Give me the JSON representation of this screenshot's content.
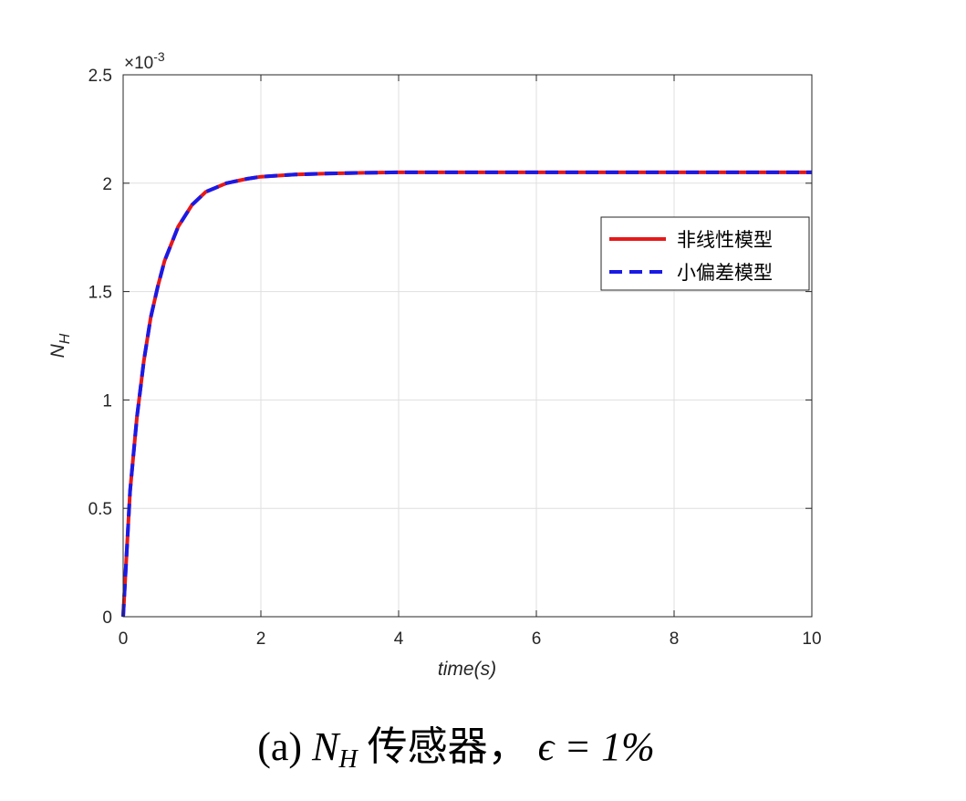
{
  "chart_data": {
    "type": "line",
    "x_axis": {
      "label": "time(s)",
      "range": [
        0,
        10
      ],
      "ticks": [
        "0",
        "2",
        "4",
        "6",
        "8",
        "10"
      ]
    },
    "y_axis": {
      "label_main": "N",
      "label_sub": "H",
      "range": [
        0,
        0.0025
      ],
      "ticks": [
        "0",
        "0.5",
        "1",
        "1.5",
        "2",
        "2.5"
      ],
      "exponent_label": "×10",
      "exponent_power": "-3"
    },
    "grid": true,
    "legend_position": "right, upper-middle",
    "series": [
      {
        "name": "非线性模型",
        "color": "#e6191a",
        "style": "solid",
        "x": [
          0,
          0.1,
          0.2,
          0.3,
          0.4,
          0.5,
          0.6,
          0.8,
          1.0,
          1.2,
          1.5,
          1.8,
          2.0,
          2.5,
          3.0,
          3.5,
          4.0,
          5.0,
          6.0,
          8.0,
          10.0
        ],
        "y": [
          0,
          0.00058,
          0.00092,
          0.00118,
          0.00138,
          0.00152,
          0.00164,
          0.0018,
          0.0019,
          0.00196,
          0.002,
          0.00202,
          0.00203,
          0.00204,
          0.002045,
          0.002048,
          0.00205,
          0.00205,
          0.00205,
          0.00205,
          0.00205
        ]
      },
      {
        "name": "小偏差模型",
        "color": "#1a1ae6",
        "style": "dashed",
        "x": [
          0,
          0.1,
          0.2,
          0.3,
          0.4,
          0.5,
          0.6,
          0.8,
          1.0,
          1.2,
          1.5,
          1.8,
          2.0,
          2.5,
          3.0,
          3.5,
          4.0,
          5.0,
          6.0,
          8.0,
          10.0
        ],
        "y": [
          0,
          0.00058,
          0.00092,
          0.00118,
          0.00138,
          0.00152,
          0.00164,
          0.0018,
          0.0019,
          0.00196,
          0.002,
          0.00202,
          0.00203,
          0.00204,
          0.002045,
          0.002048,
          0.00205,
          0.00205,
          0.00205,
          0.00205,
          0.00205
        ]
      }
    ]
  },
  "caption": {
    "prefix": "(a)",
    "var": "N",
    "var_sub": "H",
    "text": "传感器，",
    "math": "ϵ = 1%"
  }
}
